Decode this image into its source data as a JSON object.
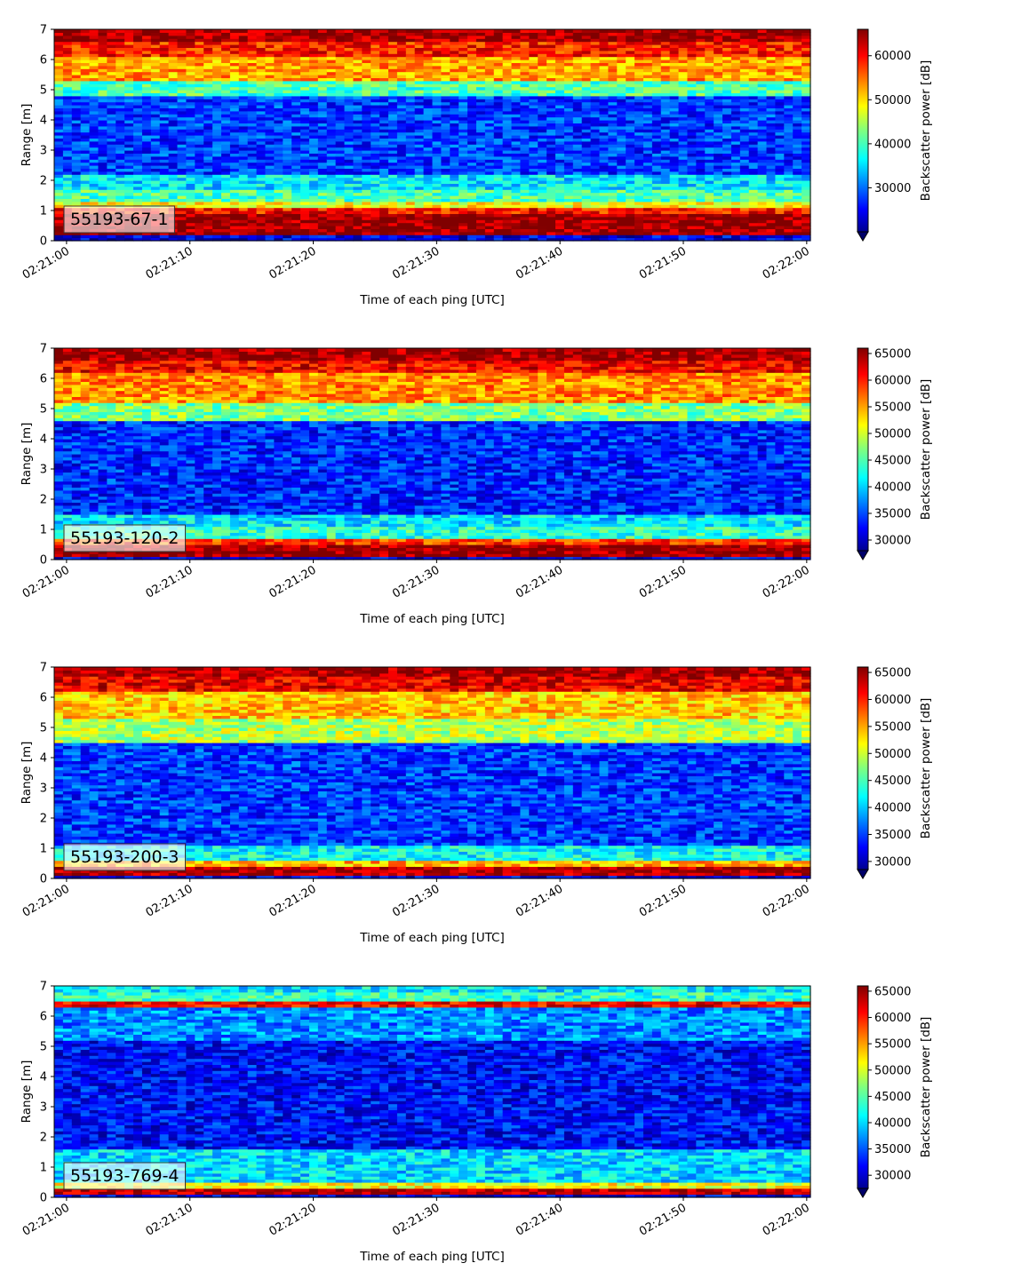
{
  "chart_data": [
    {
      "type": "heatmap",
      "label": "55193-67-1",
      "x_ticks": [
        "02:21:00",
        "02:21:10",
        "02:21:20",
        "02:21:30",
        "02:21:40",
        "02:21:50",
        "02:22:00"
      ],
      "xlabel": "Time of each ping [UTC]",
      "ylabel": "Range [m]",
      "y_ticks": [
        "0",
        "1",
        "2",
        "3",
        "4",
        "5",
        "6",
        "7"
      ],
      "ylim": [
        0,
        7
      ],
      "xlim_seconds": [
        -1,
        60.3
      ],
      "colorbar": {
        "label": "Backscatter power [dB]",
        "ticks": [
          "30000",
          "40000",
          "50000",
          "60000"
        ],
        "range": [
          20000,
          66000
        ],
        "extend": "min"
      },
      "layers": [
        {
          "y0": 0.2,
          "y1": 0.9,
          "val": 0.98
        },
        {
          "y0": 0.9,
          "y1": 1.15,
          "val": 0.86,
          "y1_end": 1.15
        },
        {
          "y0": 1.15,
          "y1": 1.35,
          "val": 0.62
        },
        {
          "y0": 1.35,
          "y1": 1.7,
          "val": 0.45,
          "y1_end": 2.0
        },
        {
          "y0": 1.7,
          "y1": 2.2,
          "val": 0.35
        },
        {
          "y0": 2.2,
          "y1": 4.8,
          "val": 0.18
        },
        {
          "y0": 4.8,
          "y1": 5.3,
          "val": 0.45
        },
        {
          "y0": 5.3,
          "y1": 6.1,
          "val": 0.72
        },
        {
          "y0": 6.1,
          "y1": 6.6,
          "val": 0.85
        },
        {
          "y0": 6.6,
          "y1": 7.0,
          "val": 0.97
        }
      ],
      "seed": 11
    },
    {
      "type": "heatmap",
      "label": "55193-120-2",
      "x_ticks": [
        "02:21:00",
        "02:21:10",
        "02:21:20",
        "02:21:30",
        "02:21:40",
        "02:21:50",
        "02:22:00"
      ],
      "xlabel": "Time of each ping [UTC]",
      "ylabel": "Range [m]",
      "y_ticks": [
        "0",
        "1",
        "2",
        "3",
        "4",
        "5",
        "6",
        "7"
      ],
      "ylim": [
        0,
        7
      ],
      "xlim_seconds": [
        -1,
        60.3
      ],
      "colorbar": {
        "label": "Backscatter power [dB]",
        "ticks": [
          "30000",
          "35000",
          "40000",
          "45000",
          "50000",
          "55000",
          "60000",
          "65000"
        ],
        "range": [
          28000,
          66000
        ],
        "extend": "min"
      },
      "layers": [
        {
          "y0": 0.1,
          "y1": 0.55,
          "val": 0.98
        },
        {
          "y0": 0.55,
          "y1": 0.75,
          "val": 0.82
        },
        {
          "y0": 0.75,
          "y1": 1.1,
          "val": 0.42
        },
        {
          "y0": 1.1,
          "y1": 1.5,
          "val": 0.35
        },
        {
          "y0": 1.5,
          "y1": 4.6,
          "val": 0.16
        },
        {
          "y0": 4.6,
          "y1": 5.2,
          "val": 0.5
        },
        {
          "y0": 5.2,
          "y1": 6.2,
          "val": 0.74
        },
        {
          "y0": 6.2,
          "y1": 6.65,
          "val": 0.88
        },
        {
          "y0": 6.65,
          "y1": 7.0,
          "val": 0.97
        }
      ],
      "seed": 23
    },
    {
      "type": "heatmap",
      "label": "55193-200-3",
      "x_ticks": [
        "02:21:00",
        "02:21:10",
        "02:21:20",
        "02:21:30",
        "02:21:40",
        "02:21:50",
        "02:22:00"
      ],
      "xlabel": "Time of each ping [UTC]",
      "ylabel": "Range [m]",
      "y_ticks": [
        "0",
        "1",
        "2",
        "3",
        "4",
        "5",
        "6",
        "7"
      ],
      "ylim": [
        0,
        7
      ],
      "xlim_seconds": [
        -1,
        60.3
      ],
      "colorbar": {
        "label": "Backscatter power [dB]",
        "ticks": [
          "30000",
          "35000",
          "40000",
          "45000",
          "50000",
          "55000",
          "60000",
          "65000"
        ],
        "range": [
          28500,
          66000
        ],
        "extend": "min"
      },
      "layers": [
        {
          "y0": 0.1,
          "y1": 0.4,
          "val": 0.96
        },
        {
          "y0": 0.4,
          "y1": 0.6,
          "val": 0.7
        },
        {
          "y0": 0.6,
          "y1": 1.1,
          "val": 0.38
        },
        {
          "y0": 1.1,
          "y1": 4.5,
          "val": 0.18
        },
        {
          "y0": 4.5,
          "y1": 5.3,
          "val": 0.55
        },
        {
          "y0": 5.3,
          "y1": 6.2,
          "val": 0.68
        },
        {
          "y0": 6.2,
          "y1": 6.7,
          "val": 0.9
        },
        {
          "y0": 6.7,
          "y1": 7.0,
          "val": 0.97
        }
      ],
      "seed": 37
    },
    {
      "type": "heatmap",
      "label": "55193-769-4",
      "x_ticks": [
        "02:21:00",
        "02:21:10",
        "02:21:20",
        "02:21:30",
        "02:21:40",
        "02:21:50",
        "02:22:00"
      ],
      "xlabel": "Time of each ping [UTC]",
      "ylabel": "Range [m]",
      "y_ticks": [
        "0",
        "1",
        "2",
        "3",
        "4",
        "5",
        "6",
        "7"
      ],
      "ylim": [
        0,
        7
      ],
      "xlim_seconds": [
        -1,
        60.3
      ],
      "colorbar": {
        "label": "Backscatter power [dB]",
        "ticks": [
          "30000",
          "35000",
          "40000",
          "45000",
          "50000",
          "55000",
          "60000",
          "65000"
        ],
        "range": [
          27500,
          66000
        ],
        "extend": "min"
      },
      "layers": [
        {
          "y0": 0.1,
          "y1": 0.3,
          "val": 0.95
        },
        {
          "y0": 0.3,
          "y1": 0.5,
          "val": 0.62
        },
        {
          "y0": 0.5,
          "y1": 1.6,
          "val": 0.34
        },
        {
          "y0": 1.6,
          "y1": 5.2,
          "val": 0.13
        },
        {
          "y0": 5.2,
          "y1": 6.3,
          "val": 0.26
        },
        {
          "y0": 6.3,
          "y1": 6.55,
          "val": 0.88
        },
        {
          "y0": 6.55,
          "y1": 6.85,
          "val": 0.42
        },
        {
          "y0": 6.85,
          "y1": 7.0,
          "val": 0.36
        }
      ],
      "seed": 51
    }
  ]
}
